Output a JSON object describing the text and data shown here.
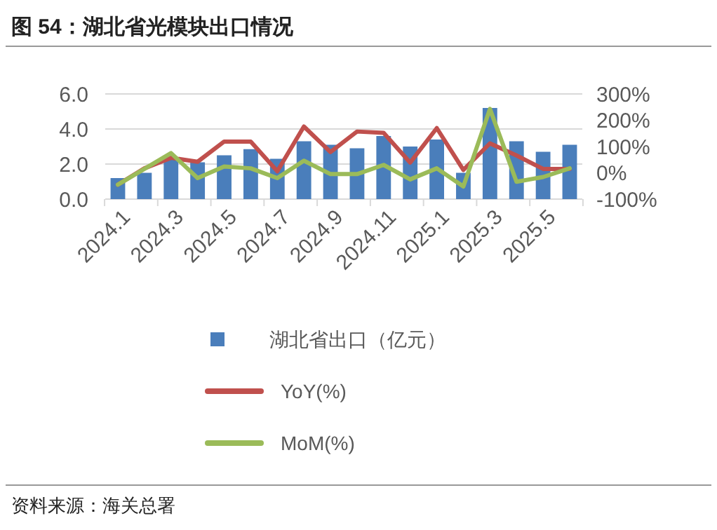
{
  "chart_data": {
    "type": "bar",
    "title": "图 54：湖北省光模块出口情况",
    "categories": [
      "2024.1",
      null,
      "2024.3",
      null,
      "2024.5",
      null,
      "2024.7",
      null,
      "2024.9",
      null,
      "2024.11",
      null,
      "2025.1",
      null,
      "2025.3",
      null,
      "2025.5",
      null
    ],
    "series": [
      {
        "name": "湖北省出口（亿元）",
        "color": "#4a7ebb",
        "values": [
          1.2,
          1.5,
          2.4,
          2.1,
          2.5,
          2.85,
          2.3,
          3.3,
          3.1,
          2.9,
          3.6,
          3.0,
          3.4,
          1.5,
          5.2,
          3.3,
          2.7,
          3.1
        ]
      },
      {
        "name": "YoY(%)",
        "type": "line",
        "axis": "y2",
        "color": "#c0504d",
        "values": [
          -45,
          17,
          57,
          42,
          119,
          119,
          6,
          176,
          79,
          157,
          152,
          39,
          170,
          11,
          112,
          66,
          15,
          15
        ]
      },
      {
        "name": "MoM(%)",
        "type": "line",
        "axis": "y2",
        "color": "#9bbb59",
        "values": [
          -45,
          15,
          75,
          -20,
          24,
          17,
          -20,
          46,
          -5,
          -5,
          30,
          -25,
          17,
          -52,
          243,
          -34,
          -16,
          17
        ]
      }
    ],
    "ylim": [
      0,
      6
    ],
    "yticks": [
      {
        "value": 0,
        "label": "0.0"
      },
      {
        "value": 2,
        "label": "2.0"
      },
      {
        "value": 4,
        "label": "4.0"
      },
      {
        "value": 6,
        "label": "6.0"
      }
    ],
    "y2lim": [
      -100,
      300
    ],
    "y2ticks": [
      {
        "value": -100,
        "label": "-100%"
      },
      {
        "value": 0,
        "label": "0%"
      },
      {
        "value": 100,
        "label": "100%"
      },
      {
        "value": 200,
        "label": "200%"
      },
      {
        "value": 300,
        "label": "300%"
      }
    ],
    "grid": "y",
    "legend": "bottom",
    "marker": "none",
    "line_style": "solid",
    "annotations": [
      "资料来源：海关总署"
    ]
  }
}
